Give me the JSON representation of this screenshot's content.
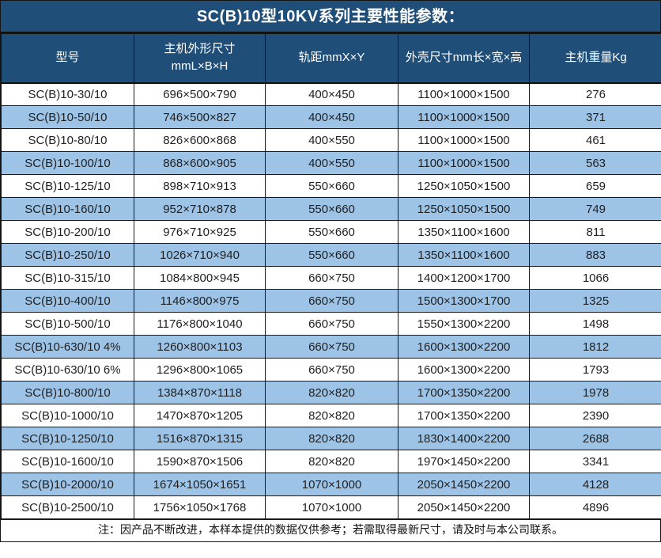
{
  "title": "SC(B)10型10KV系列主要性能参数：",
  "header": {
    "model": "型号",
    "dimensions_line1": "主机外形尺寸",
    "dimensions_line2": "mmL×B×H",
    "rail_gauge": "轨距mmX×Y",
    "shell_size": "外壳尺寸mm长×宽×高",
    "weight": "主机重量Kg"
  },
  "note": "注：因产品不断改进，本样本提供的数据仅供参考；若需取得最新尺寸，请及时与本公司联系。",
  "colors": {
    "header_bg": "#1F4E79",
    "alt_row_bg": "#9DC3E6",
    "row_bg": "#FFFFFF",
    "border": "#1A1A1A",
    "header_text": "#FFFFFF",
    "body_text": "#1F1F1F"
  },
  "chart_data": {
    "type": "table",
    "title": "SC(B)10型10KV系列主要性能参数",
    "columns": [
      "型号",
      "主机外形尺寸 mmL×B×H",
      "轨距mmX×Y",
      "外壳尺寸mm长×宽×高",
      "主机重量Kg"
    ],
    "rows": [
      [
        "SC(B)10-30/10",
        "696×500×790",
        "400×450",
        "1100×1000×1500",
        "276"
      ],
      [
        "SC(B)10-50/10",
        "746×500×827",
        "400×450",
        "1100×1000×1500",
        "371"
      ],
      [
        "SC(B)10-80/10",
        "826×600×868",
        "400×550",
        "1100×1000×1500",
        "461"
      ],
      [
        "SC(B)10-100/10",
        "868×600×905",
        "400×550",
        "1100×1000×1500",
        "563"
      ],
      [
        "SC(B)10-125/10",
        "898×710×913",
        "550×660",
        "1250×1050×1500",
        "659"
      ],
      [
        "SC(B)10-160/10",
        "952×710×878",
        "550×660",
        "1250×1050×1500",
        "749"
      ],
      [
        "SC(B)10-200/10",
        "976×710×925",
        "550×660",
        "1350×1100×1600",
        "811"
      ],
      [
        "SC(B)10-250/10",
        "1026×710×940",
        "550×660",
        "1350×1100×1600",
        "883"
      ],
      [
        "SC(B)10-315/10",
        "1084×800×945",
        "660×750",
        "1400×1200×1700",
        "1066"
      ],
      [
        "SC(B)10-400/10",
        "1146×800×975",
        "660×750",
        "1500×1300×1700",
        "1325"
      ],
      [
        "SC(B)10-500/10",
        "1176×800×1040",
        "660×750",
        "1550×1300×2200",
        "1498"
      ],
      [
        "SC(B)10-630/10 4%",
        "1260×800×1103",
        "660×750",
        "1600×1300×2200",
        "1812"
      ],
      [
        "SC(B)10-630/10 6%",
        "1296×800×1065",
        "660×750",
        "1600×1300×2200",
        "1793"
      ],
      [
        "SC(B)10-800/10",
        "1384×870×1118",
        "820×820",
        "1700×1350×2200",
        "1978"
      ],
      [
        "SC(B)10-1000/10",
        "1470×870×1205",
        "820×820",
        "1700×1350×2200",
        "2390"
      ],
      [
        "SC(B)10-1250/10",
        "1516×870×1315",
        "820×820",
        "1830×1400×2200",
        "2688"
      ],
      [
        "SC(B)10-1600/10",
        "1590×870×1506",
        "820×820",
        "1970×1450×2200",
        "3341"
      ],
      [
        "SC(B)10-2000/10",
        "1674×1050×1651",
        "1070×1000",
        "2050×1450×2200",
        "4128"
      ],
      [
        "SC(B)10-2500/10",
        "1756×1050×1768",
        "1070×1000",
        "2050×1450×2200",
        "4896"
      ]
    ]
  }
}
